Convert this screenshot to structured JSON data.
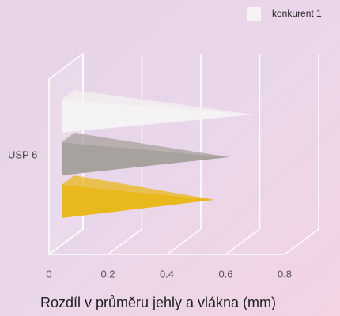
{
  "chart_data": {
    "type": "bar3d",
    "categories": [
      "USP 6"
    ],
    "series": [
      {
        "name": "konkurent 1",
        "color": "#f4f2f2",
        "values": [
          0.65
        ]
      },
      {
        "color": "#a8a29e",
        "values": [
          0.57
        ]
      },
      {
        "color": "#e8b81c",
        "values": [
          0.52
        ]
      }
    ],
    "xlabel": "Rozdíl v průměru jehly a vlákna (mm)",
    "xlim": [
      0,
      0.8
    ],
    "xticks": [
      0,
      0.2,
      0.4,
      0.6,
      0.8
    ],
    "grid": true,
    "legend": "top-right"
  }
}
